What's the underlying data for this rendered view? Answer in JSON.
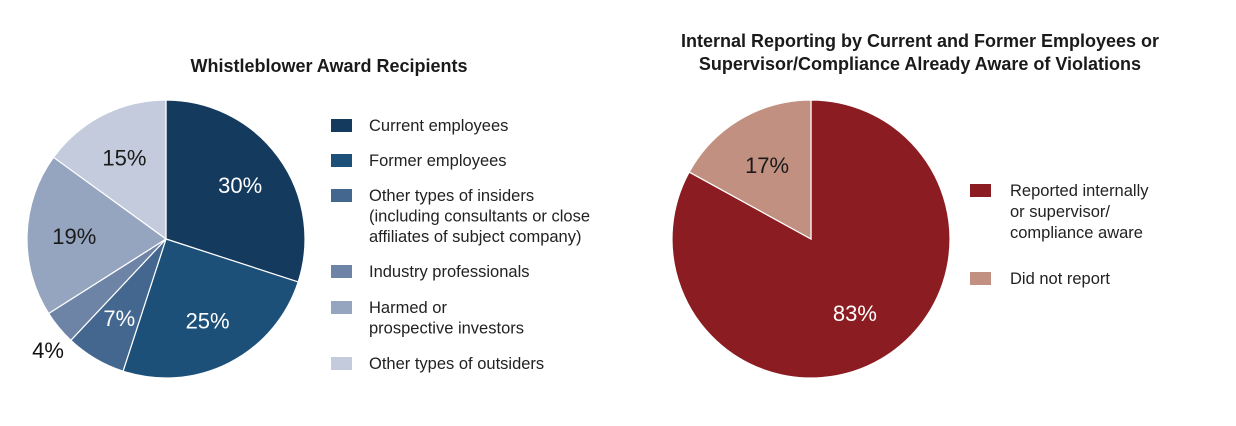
{
  "chart_data": [
    {
      "type": "pie",
      "title": "Whistleblower Award Recipients",
      "slices": [
        {
          "label": "Current employees",
          "value": 30,
          "display": "30%",
          "color": "#143a5e"
        },
        {
          "label": "Former employees",
          "value": 25,
          "display": "25%",
          "color": "#1d5079"
        },
        {
          "label": "Other types of insiders (including consultants or close affiliates of subject company)",
          "value": 7,
          "display": "7%",
          "color": "#44678f"
        },
        {
          "label": "Industry professionals",
          "value": 4,
          "display": "4%",
          "color": "#6e84a6"
        },
        {
          "label": "Harmed or prospective investors",
          "value": 19,
          "display": "19%",
          "color": "#95a5c0"
        },
        {
          "label": "Other types of outsiders",
          "value": 15,
          "display": "15%",
          "color": "#c3cbdc"
        }
      ],
      "legend": [
        {
          "lines": [
            "Current employees"
          ],
          "color": "#143a5e"
        },
        {
          "lines": [
            "Former employees"
          ],
          "color": "#1d5079"
        },
        {
          "lines": [
            "Other types of insiders",
            "(including consultants or close",
            "affiliates of subject company)"
          ],
          "color": "#44678f"
        },
        {
          "lines": [
            "Industry professionals"
          ],
          "color": "#6e84a6"
        },
        {
          "lines": [
            "Harmed or",
            "prospective investors"
          ],
          "color": "#95a5c0"
        },
        {
          "lines": [
            "Other types of outsiders"
          ],
          "color": "#c3cbdc"
        }
      ],
      "legend_position": "right"
    },
    {
      "type": "pie",
      "title": "Internal Reporting by Current and Former Employees or Supervisor/Compliance Already Aware of Violations",
      "title_lines": [
        "Internal Reporting by Current and Former Employees or",
        "Supervisor/Compliance Already Aware of Violations"
      ],
      "slices": [
        {
          "label": "Reported internally or supervisor/ compliance aware",
          "value": 83,
          "display": "83%",
          "color": "#8b1c22"
        },
        {
          "label": "Did not report",
          "value": 17,
          "display": "17%",
          "color": "#c19080"
        }
      ],
      "legend": [
        {
          "lines": [
            "Reported internally",
            "or supervisor/",
            "compliance aware"
          ],
          "color": "#8b1c22"
        },
        {
          "lines": [
            "Did not report"
          ],
          "color": "#c19080"
        }
      ],
      "legend_position": "right"
    }
  ]
}
